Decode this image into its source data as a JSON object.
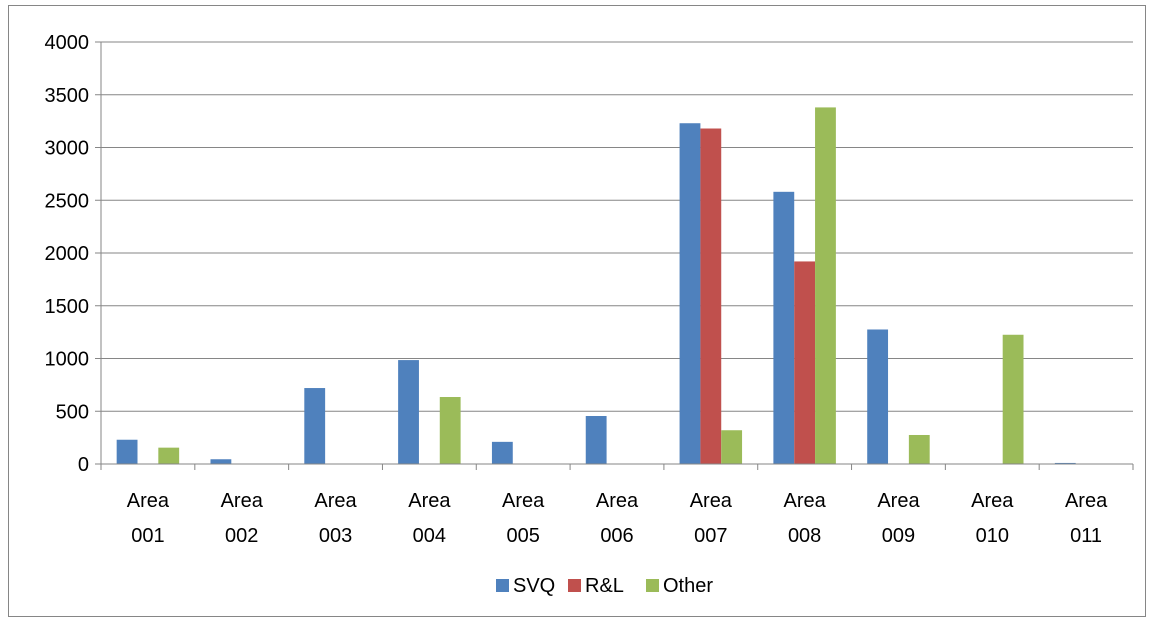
{
  "chart_data": {
    "type": "bar",
    "categories": [
      [
        "Area",
        "001"
      ],
      [
        "Area",
        "002"
      ],
      [
        "Area",
        "003"
      ],
      [
        "Area",
        "004"
      ],
      [
        "Area",
        "005"
      ],
      [
        "Area",
        "006"
      ],
      [
        "Area",
        "007"
      ],
      [
        "Area",
        "008"
      ],
      [
        "Area",
        "009"
      ],
      [
        "Area",
        "010"
      ],
      [
        "Area",
        "011"
      ]
    ],
    "series": [
      {
        "name": "SVQ",
        "color": "#4F81BD",
        "values": [
          230,
          45,
          720,
          985,
          210,
          455,
          3230,
          2580,
          1275,
          0,
          10
        ]
      },
      {
        "name": "R&L",
        "color": "#C0504D",
        "values": [
          0,
          0,
          0,
          0,
          0,
          0,
          3180,
          1920,
          0,
          0,
          0
        ]
      },
      {
        "name": "Other",
        "color": "#9BBB59",
        "values": [
          155,
          0,
          0,
          635,
          0,
          0,
          320,
          3380,
          275,
          1225,
          0
        ]
      }
    ],
    "yticks": [
      "0",
      "500",
      "1000",
      "1500",
      "2000",
      "2500",
      "3000",
      "3500",
      "4000"
    ],
    "ylim": [
      0,
      4000
    ],
    "grid": true,
    "legend_position": "bottom",
    "title": "",
    "xlabel": "",
    "ylabel": ""
  }
}
